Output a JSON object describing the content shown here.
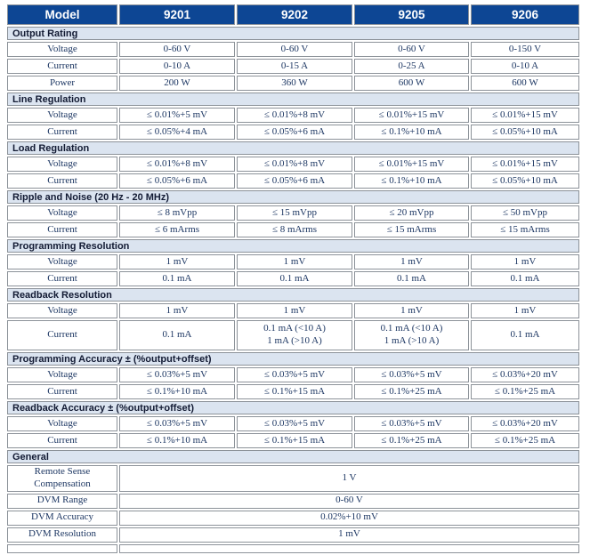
{
  "colors": {
    "header_bg": "#0d4694",
    "header_text": "#ffffff",
    "section_bg": "#dbe4f0",
    "section_text": "#121a33",
    "cell_text": "#1c3662",
    "border": "#8c9299"
  },
  "table": {
    "header": [
      "Model",
      "9201",
      "9202",
      "9205",
      "9206"
    ],
    "sections": [
      {
        "title": "Output Rating",
        "rows": [
          {
            "label": "Voltage",
            "values": [
              "0-60 V",
              "0-60 V",
              "0-60 V",
              "0-150 V"
            ]
          },
          {
            "label": "Current",
            "values": [
              "0-10 A",
              "0-15 A",
              "0-25 A",
              "0-10 A"
            ]
          },
          {
            "label": "Power",
            "values": [
              "200 W",
              "360 W",
              "600 W",
              "600 W"
            ]
          }
        ]
      },
      {
        "title": "Line Regulation",
        "rows": [
          {
            "label": "Voltage",
            "values": [
              "≤ 0.01%+5 mV",
              "≤ 0.01%+8 mV",
              "≤ 0.01%+15 mV",
              "≤ 0.01%+15 mV"
            ]
          },
          {
            "label": "Current",
            "values": [
              "≤ 0.05%+4 mA",
              "≤ 0.05%+6 mA",
              "≤ 0.1%+10 mA",
              "≤ 0.05%+10 mA"
            ]
          }
        ]
      },
      {
        "title": "Load Regulation",
        "rows": [
          {
            "label": "Voltage",
            "values": [
              "≤ 0.01%+8 mV",
              "≤ 0.01%+8 mV",
              "≤ 0.01%+15 mV",
              "≤ 0.01%+15 mV"
            ]
          },
          {
            "label": "Current",
            "values": [
              "≤ 0.05%+6 mA",
              "≤ 0.05%+6 mA",
              "≤ 0.1%+10 mA",
              "≤ 0.05%+10 mA"
            ]
          }
        ]
      },
      {
        "title": "Ripple and Noise (20 Hz - 20 MHz)",
        "rows": [
          {
            "label": "Voltage",
            "values": [
              "≤ 8 mVpp",
              "≤ 15 mVpp",
              "≤ 20 mVpp",
              "≤ 50 mVpp"
            ]
          },
          {
            "label": "Current",
            "values": [
              "≤ 6 mArms",
              "≤ 8 mArms",
              "≤ 15 mArms",
              "≤ 15 mArms"
            ]
          }
        ]
      },
      {
        "title": "Programming Resolution",
        "rows": [
          {
            "label": "Voltage",
            "values": [
              "1 mV",
              "1 mV",
              "1 mV",
              "1 mV"
            ]
          },
          {
            "label": "Current",
            "values": [
              "0.1 mA",
              "0.1 mA",
              "0.1 mA",
              "0.1 mA"
            ]
          }
        ]
      },
      {
        "title": "Readback Resolution",
        "rows": [
          {
            "label": "Voltage",
            "values": [
              "1 mV",
              "1 mV",
              "1 mV",
              "1 mV"
            ]
          },
          {
            "label": "Current",
            "tall": true,
            "values": [
              "0.1 mA",
              "0.1 mA (<10 A)\n1 mA (>10 A)",
              "0.1 mA (<10 A)\n1 mA (>10 A)",
              "0.1 mA"
            ]
          }
        ]
      },
      {
        "title": "Programming Accuracy ± (%output+offset)",
        "rows": [
          {
            "label": "Voltage",
            "values": [
              "≤ 0.03%+5 mV",
              "≤ 0.03%+5 mV",
              "≤ 0.03%+5 mV",
              "≤ 0.03%+20 mV"
            ]
          },
          {
            "label": "Current",
            "values": [
              "≤ 0.1%+10 mA",
              "≤ 0.1%+15 mA",
              "≤ 0.1%+25 mA",
              "≤ 0.1%+25 mA"
            ]
          }
        ]
      },
      {
        "title": "Readback Accuracy ± (%output+offset)",
        "rows": [
          {
            "label": "Voltage",
            "values": [
              "≤ 0.03%+5 mV",
              "≤ 0.03%+5 mV",
              "≤ 0.03%+5 mV",
              "≤ 0.03%+20 mV"
            ]
          },
          {
            "label": "Current",
            "values": [
              "≤ 0.1%+10 mA",
              "≤ 0.1%+15 mA",
              "≤ 0.1%+25 mA",
              "≤ 0.1%+25 mA"
            ]
          }
        ]
      },
      {
        "title": "General",
        "rows": [
          {
            "label": "Remote Sense Compensation",
            "span": "1 V"
          },
          {
            "label": "DVM Range",
            "span": "0-60 V"
          },
          {
            "label": "DVM Accuracy",
            "span": "0.02%+10 mV"
          },
          {
            "label": "DVM Resolution",
            "span": "1 mV"
          }
        ]
      }
    ]
  }
}
